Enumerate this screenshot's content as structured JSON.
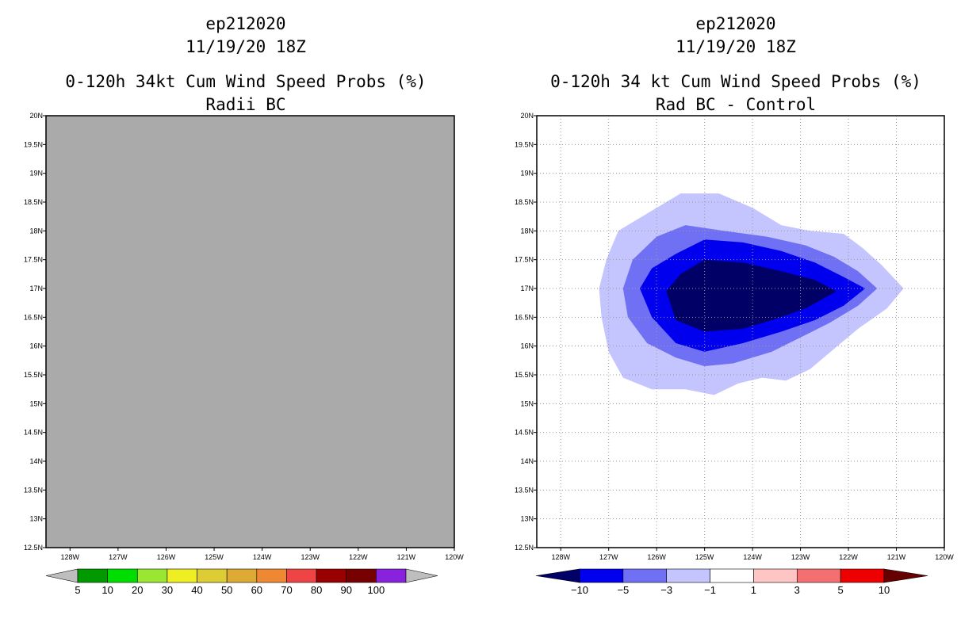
{
  "chart_data": [
    {
      "type": "heatmap",
      "storm": "ep212020",
      "datetime": "11/19/20 18Z",
      "title": "0-120h 34kt Cum Wind Speed Probs (%)",
      "subtitle": "Radii BC",
      "xlim": [
        -128.5,
        -120
      ],
      "ylim": [
        12.5,
        20
      ],
      "xticks": [
        {
          "v": -128,
          "label": "128W"
        },
        {
          "v": -127,
          "label": "127W"
        },
        {
          "v": -126,
          "label": "126W"
        },
        {
          "v": -125,
          "label": "125W"
        },
        {
          "v": -124,
          "label": "124W"
        },
        {
          "v": -123,
          "label": "123W"
        },
        {
          "v": -122,
          "label": "122W"
        },
        {
          "v": -121,
          "label": "121W"
        },
        {
          "v": -120,
          "label": "120W"
        }
      ],
      "yticks": [
        {
          "v": 12.5,
          "label": "12.5N"
        },
        {
          "v": 13,
          "label": "13N"
        },
        {
          "v": 13.5,
          "label": "13.5N"
        },
        {
          "v": 14,
          "label": "14N"
        },
        {
          "v": 14.5,
          "label": "14.5N"
        },
        {
          "v": 15,
          "label": "15N"
        },
        {
          "v": 15.5,
          "label": "15.5N"
        },
        {
          "v": 16,
          "label": "16N"
        },
        {
          "v": 16.5,
          "label": "16.5N"
        },
        {
          "v": 17,
          "label": "17N"
        },
        {
          "v": 17.5,
          "label": "17.5N"
        },
        {
          "v": 18,
          "label": "18N"
        },
        {
          "v": 18.5,
          "label": "18.5N"
        },
        {
          "v": 19,
          "label": "19N"
        },
        {
          "v": 19.5,
          "label": "19.5N"
        },
        {
          "v": 20,
          "label": "20N"
        }
      ],
      "background": "#aaaaaa",
      "grid": false,
      "contours": [],
      "colorbar": {
        "colors": [
          "#bebebe",
          "#009900",
          "#00dd00",
          "#99e633",
          "#eeee22",
          "#ddcc33",
          "#ddaa33",
          "#ee8833",
          "#ee4444",
          "#990000",
          "#770000",
          "#8822dd",
          "#bebebe"
        ],
        "labels": [
          "5",
          "10",
          "20",
          "30",
          "40",
          "50",
          "60",
          "70",
          "80",
          "90",
          "100"
        ]
      }
    },
    {
      "type": "heatmap",
      "storm": "ep212020",
      "datetime": "11/19/20 18Z",
      "title": "0-120h 34 kt Cum Wind Speed Probs (%)",
      "subtitle": "Rad BC - Control",
      "xlim": [
        -128.5,
        -120
      ],
      "ylim": [
        12.5,
        20
      ],
      "xticks": [
        {
          "v": -128,
          "label": "128W"
        },
        {
          "v": -127,
          "label": "127W"
        },
        {
          "v": -126,
          "label": "126W"
        },
        {
          "v": -125,
          "label": "125W"
        },
        {
          "v": -124,
          "label": "124W"
        },
        {
          "v": -123,
          "label": "123W"
        },
        {
          "v": -122,
          "label": "122W"
        },
        {
          "v": -121,
          "label": "121W"
        },
        {
          "v": -120,
          "label": "120W"
        }
      ],
      "yticks": [
        {
          "v": 12.5,
          "label": "12.5N"
        },
        {
          "v": 13,
          "label": "13N"
        },
        {
          "v": 13.5,
          "label": "13.5N"
        },
        {
          "v": 14,
          "label": "14N"
        },
        {
          "v": 14.5,
          "label": "14.5N"
        },
        {
          "v": 15,
          "label": "15N"
        },
        {
          "v": 15.5,
          "label": "15.5N"
        },
        {
          "v": 16,
          "label": "16N"
        },
        {
          "v": 16.5,
          "label": "16.5N"
        },
        {
          "v": 17,
          "label": "17N"
        },
        {
          "v": 17.5,
          "label": "17.5N"
        },
        {
          "v": 18,
          "label": "18N"
        },
        {
          "v": 18.5,
          "label": "18.5N"
        },
        {
          "v": 19,
          "label": "19N"
        },
        {
          "v": 19.5,
          "label": "19.5N"
        },
        {
          "v": 20,
          "label": "20N"
        }
      ],
      "background": "#ffffff",
      "grid": true,
      "contours": [
        {
          "level": "-1 to -3",
          "color": "#c4c4ff",
          "points": [
            [
              -126.2,
              18.3
            ],
            [
              -125.5,
              18.65
            ],
            [
              -124.7,
              18.65
            ],
            [
              -124,
              18.4
            ],
            [
              -123.4,
              18.1
            ],
            [
              -122.8,
              18.0
            ],
            [
              -122.1,
              17.95
            ],
            [
              -121.7,
              17.7
            ],
            [
              -121.3,
              17.4
            ],
            [
              -120.85,
              17.0
            ],
            [
              -121.2,
              16.65
            ],
            [
              -121.8,
              16.3
            ],
            [
              -122.3,
              15.95
            ],
            [
              -122.8,
              15.6
            ],
            [
              -123.3,
              15.4
            ],
            [
              -123.8,
              15.45
            ],
            [
              -124.3,
              15.35
            ],
            [
              -124.8,
              15.15
            ],
            [
              -125.4,
              15.25
            ],
            [
              -126.1,
              15.25
            ],
            [
              -126.7,
              15.45
            ],
            [
              -127.0,
              15.9
            ],
            [
              -127.15,
              16.5
            ],
            [
              -127.2,
              17.0
            ],
            [
              -127.05,
              17.5
            ],
            [
              -126.8,
              18.0
            ]
          ]
        },
        {
          "level": "-3 to -5",
          "color": "#7070f4",
          "points": [
            [
              -126.0,
              17.9
            ],
            [
              -125.4,
              18.1
            ],
            [
              -124.6,
              18.0
            ],
            [
              -123.7,
              17.9
            ],
            [
              -122.9,
              17.75
            ],
            [
              -122.3,
              17.55
            ],
            [
              -121.8,
              17.3
            ],
            [
              -121.4,
              17.0
            ],
            [
              -121.8,
              16.7
            ],
            [
              -122.4,
              16.4
            ],
            [
              -123.0,
              16.15
            ],
            [
              -123.6,
              15.9
            ],
            [
              -124.4,
              15.7
            ],
            [
              -125.0,
              15.65
            ],
            [
              -125.6,
              15.8
            ],
            [
              -126.2,
              16.05
            ],
            [
              -126.6,
              16.5
            ],
            [
              -126.7,
              17.0
            ],
            [
              -126.5,
              17.5
            ]
          ]
        },
        {
          "level": "-5 to -10",
          "color": "#0000ee",
          "points": [
            [
              -125.6,
              17.6
            ],
            [
              -125.0,
              17.85
            ],
            [
              -124.2,
              17.8
            ],
            [
              -123.4,
              17.65
            ],
            [
              -122.7,
              17.45
            ],
            [
              -122.1,
              17.2
            ],
            [
              -121.65,
              17.0
            ],
            [
              -122.1,
              16.7
            ],
            [
              -122.7,
              16.45
            ],
            [
              -123.4,
              16.25
            ],
            [
              -124.2,
              16.05
            ],
            [
              -125.0,
              15.9
            ],
            [
              -125.6,
              16.05
            ],
            [
              -126.1,
              16.5
            ],
            [
              -126.35,
              17.0
            ],
            [
              -126.1,
              17.35
            ]
          ]
        },
        {
          "level": "< -10",
          "color": "#000066",
          "points": [
            [
              -125.0,
              17.5
            ],
            [
              -124.2,
              17.45
            ],
            [
              -123.4,
              17.3
            ],
            [
              -122.7,
              17.15
            ],
            [
              -122.25,
              16.95
            ],
            [
              -122.9,
              16.65
            ],
            [
              -123.6,
              16.45
            ],
            [
              -124.2,
              16.3
            ],
            [
              -125.0,
              16.25
            ],
            [
              -125.6,
              16.45
            ],
            [
              -125.8,
              16.95
            ],
            [
              -125.5,
              17.25
            ]
          ]
        }
      ],
      "colorbar": {
        "colors": [
          "#000066",
          "#0000ee",
          "#7070f4",
          "#c4c4ff",
          "#ffffff",
          "#ffc4c4",
          "#f47070",
          "#ee0000",
          "#660000"
        ],
        "labels": [
          "−10",
          "−5",
          "−3",
          "−1",
          "1",
          "3",
          "5",
          "10"
        ]
      }
    }
  ]
}
